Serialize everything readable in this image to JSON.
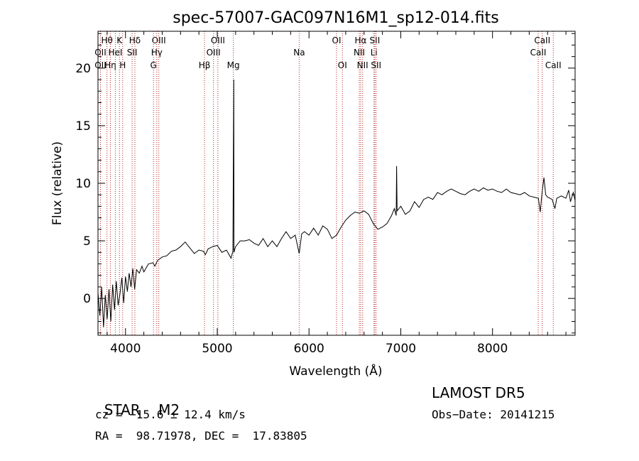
{
  "chart_data": {
    "type": "line",
    "title": "spec-57007-GAC097N16M1_sp12-014.fits",
    "xlabel": "Wavelength (Å)",
    "ylabel": "Flux (relative)",
    "xlim": [
      3700,
      8900
    ],
    "ylim": [
      -3.2,
      23.2
    ],
    "xticks": [
      4000,
      5000,
      6000,
      7000,
      8000
    ],
    "yticks": [
      0,
      5,
      10,
      15,
      20
    ],
    "grid": false,
    "line_color": "#000000",
    "marker_color": "#b22222",
    "spectral_lines": [
      {
        "label": "Hθ",
        "x": 3798,
        "row": 0
      },
      {
        "label": "OII",
        "x": 3727,
        "row": 1
      },
      {
        "label": "OII",
        "x": 3727,
        "row": 2
      },
      {
        "label": "Hη",
        "x": 3835,
        "row": 2
      },
      {
        "label": "K",
        "x": 3934,
        "row": 0
      },
      {
        "label": "HeI",
        "x": 3889,
        "row": 1
      },
      {
        "label": "H",
        "x": 3969,
        "row": 2
      },
      {
        "label": "Hδ",
        "x": 4102,
        "row": 0
      },
      {
        "label": "SII",
        "x": 4072,
        "row": 1
      },
      {
        "label": "OIII",
        "x": 4363,
        "row": 0
      },
      {
        "label": "Hγ",
        "x": 4341,
        "row": 1
      },
      {
        "label": "G",
        "x": 4305,
        "row": 2
      },
      {
        "label": "OIII",
        "x": 5007,
        "row": 0
      },
      {
        "label": "OIII",
        "x": 4959,
        "row": 1
      },
      {
        "label": "Hβ",
        "x": 4861,
        "row": 2
      },
      {
        "label": "Mg",
        "x": 5175,
        "row": 2
      },
      {
        "label": "Na",
        "x": 5893,
        "row": 1
      },
      {
        "label": "OI",
        "x": 6300,
        "row": 0
      },
      {
        "label": "OI",
        "x": 6364,
        "row": 2
      },
      {
        "label": "Hα",
        "x": 6563,
        "row": 0
      },
      {
        "label": "NII",
        "x": 6548,
        "row": 1
      },
      {
        "label": "NII",
        "x": 6584,
        "row": 2
      },
      {
        "label": "SII",
        "x": 6717,
        "row": 0
      },
      {
        "label": "Li",
        "x": 6708,
        "row": 1
      },
      {
        "label": "SII",
        "x": 6731,
        "row": 2
      },
      {
        "label": "CaII",
        "x": 8542,
        "row": 0
      },
      {
        "label": "CaII",
        "x": 8498,
        "row": 1
      },
      {
        "label": "CaII",
        "x": 8662,
        "row": 2
      }
    ],
    "series": [
      {
        "points": [
          [
            3700,
            0.5
          ],
          [
            3720,
            -1.5
          ],
          [
            3740,
            1.0
          ],
          [
            3760,
            -2.5
          ],
          [
            3780,
            0.3
          ],
          [
            3800,
            -1.8
          ],
          [
            3820,
            0.8
          ],
          [
            3840,
            -2.0
          ],
          [
            3860,
            1.2
          ],
          [
            3880,
            -1.0
          ],
          [
            3900,
            1.5
          ],
          [
            3920,
            -0.6
          ],
          [
            3940,
            0.4
          ],
          [
            3960,
            1.8
          ],
          [
            3980,
            -0.4
          ],
          [
            4000,
            1.9
          ],
          [
            4020,
            0.6
          ],
          [
            4040,
            2.2
          ],
          [
            4060,
            1.0
          ],
          [
            4080,
            2.6
          ],
          [
            4100,
            0.8
          ],
          [
            4120,
            2.5
          ],
          [
            4150,
            2.2
          ],
          [
            4180,
            2.8
          ],
          [
            4200,
            2.3
          ],
          [
            4250,
            3.0
          ],
          [
            4300,
            3.1
          ],
          [
            4320,
            2.8
          ],
          [
            4350,
            3.3
          ],
          [
            4400,
            3.6
          ],
          [
            4450,
            3.7
          ],
          [
            4500,
            4.1
          ],
          [
            4550,
            4.2
          ],
          [
            4600,
            4.5
          ],
          [
            4650,
            4.9
          ],
          [
            4700,
            4.4
          ],
          [
            4750,
            3.9
          ],
          [
            4800,
            4.2
          ],
          [
            4850,
            4.1
          ],
          [
            4870,
            3.8
          ],
          [
            4900,
            4.3
          ],
          [
            4950,
            4.5
          ],
          [
            5000,
            4.6
          ],
          [
            5050,
            4.0
          ],
          [
            5100,
            4.2
          ],
          [
            5150,
            3.5
          ],
          [
            5170,
            4.1
          ],
          [
            5180,
            19.0
          ],
          [
            5182,
            4.0
          ],
          [
            5200,
            4.5
          ],
          [
            5250,
            5.0
          ],
          [
            5300,
            5.0
          ],
          [
            5350,
            5.1
          ],
          [
            5400,
            4.8
          ],
          [
            5450,
            4.6
          ],
          [
            5500,
            5.2
          ],
          [
            5550,
            4.5
          ],
          [
            5600,
            5.0
          ],
          [
            5650,
            4.5
          ],
          [
            5700,
            5.2
          ],
          [
            5750,
            5.8
          ],
          [
            5800,
            5.2
          ],
          [
            5850,
            5.5
          ],
          [
            5893,
            3.9
          ],
          [
            5920,
            5.6
          ],
          [
            5950,
            5.8
          ],
          [
            6000,
            5.5
          ],
          [
            6050,
            6.1
          ],
          [
            6100,
            5.5
          ],
          [
            6150,
            6.3
          ],
          [
            6200,
            6.0
          ],
          [
            6250,
            5.2
          ],
          [
            6300,
            5.5
          ],
          [
            6350,
            6.2
          ],
          [
            6400,
            6.8
          ],
          [
            6450,
            7.2
          ],
          [
            6500,
            7.5
          ],
          [
            6550,
            7.4
          ],
          [
            6600,
            7.6
          ],
          [
            6650,
            7.3
          ],
          [
            6700,
            6.5
          ],
          [
            6750,
            6.0
          ],
          [
            6800,
            6.2
          ],
          [
            6850,
            6.5
          ],
          [
            6900,
            7.2
          ],
          [
            6930,
            7.8
          ],
          [
            6950,
            7.2
          ],
          [
            6955,
            11.5
          ],
          [
            6960,
            7.6
          ],
          [
            7000,
            8.0
          ],
          [
            7050,
            7.3
          ],
          [
            7100,
            7.6
          ],
          [
            7150,
            8.4
          ],
          [
            7200,
            7.9
          ],
          [
            7250,
            8.6
          ],
          [
            7300,
            8.8
          ],
          [
            7350,
            8.6
          ],
          [
            7400,
            9.2
          ],
          [
            7450,
            9.0
          ],
          [
            7500,
            9.3
          ],
          [
            7550,
            9.5
          ],
          [
            7600,
            9.3
          ],
          [
            7650,
            9.1
          ],
          [
            7700,
            9.0
          ],
          [
            7750,
            9.3
          ],
          [
            7800,
            9.5
          ],
          [
            7850,
            9.3
          ],
          [
            7900,
            9.6
          ],
          [
            7950,
            9.4
          ],
          [
            8000,
            9.5
          ],
          [
            8050,
            9.3
          ],
          [
            8100,
            9.2
          ],
          [
            8150,
            9.5
          ],
          [
            8200,
            9.2
          ],
          [
            8250,
            9.1
          ],
          [
            8300,
            9.0
          ],
          [
            8350,
            9.2
          ],
          [
            8400,
            8.9
          ],
          [
            8450,
            8.8
          ],
          [
            8500,
            8.7
          ],
          [
            8520,
            7.5
          ],
          [
            8540,
            9.2
          ],
          [
            8560,
            10.5
          ],
          [
            8580,
            9.0
          ],
          [
            8600,
            8.8
          ],
          [
            8650,
            8.6
          ],
          [
            8680,
            7.8
          ],
          [
            8700,
            8.7
          ],
          [
            8750,
            8.9
          ],
          [
            8800,
            8.7
          ],
          [
            8830,
            9.4
          ],
          [
            8850,
            8.4
          ],
          [
            8880,
            9.2
          ],
          [
            8900,
            8.5
          ]
        ]
      }
    ]
  },
  "info": {
    "object": "STAR",
    "subclass": "M2",
    "survey": "LAMOST DR5",
    "cz": "cz = −15.6 ± 12.4 km/s",
    "obs_date": "Obs−Date: 20141215",
    "coords": "RA =  98.71978, DEC =  17.83805"
  }
}
